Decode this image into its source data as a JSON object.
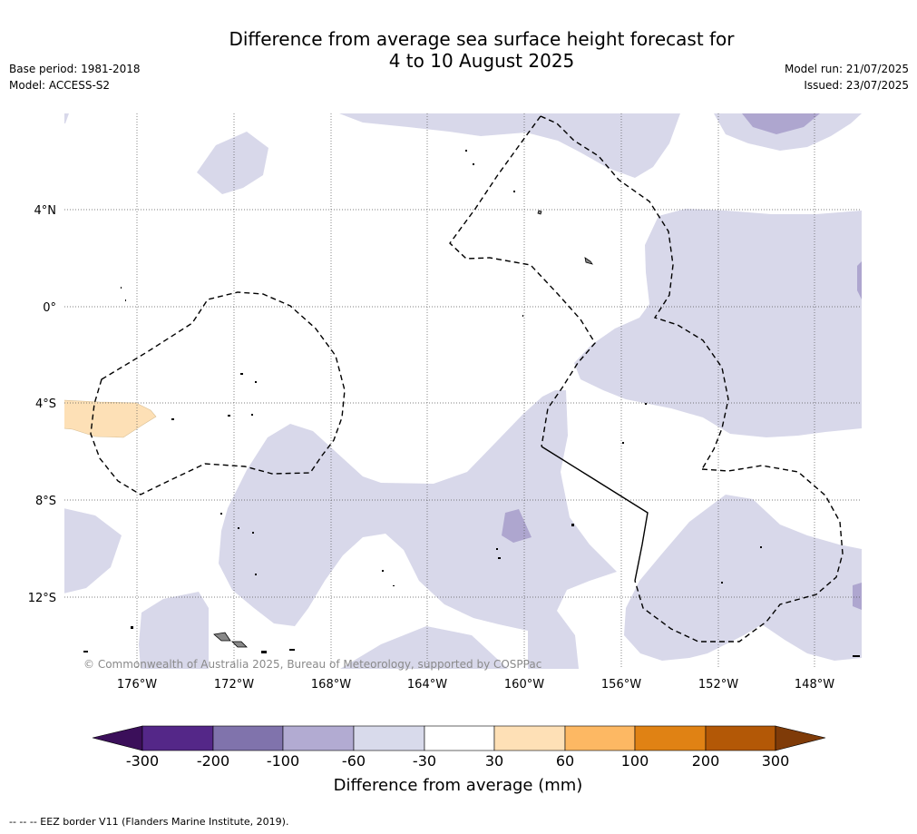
{
  "header": {
    "title_line1": "Difference from average sea surface height forecast for",
    "title_line2": "4 to 10 August 2025",
    "base_period": "Base period: 1981-2018",
    "model": "Model: ACCESS-S2",
    "model_run": "Model run: 21/07/2025",
    "issued": "Issued: 23/07/2025"
  },
  "map": {
    "lat_labels": [
      "4°N",
      "0°",
      "4°S",
      "8°S",
      "12°S"
    ],
    "lon_labels": [
      "176°W",
      "172°W",
      "168°W",
      "164°W",
      "160°W",
      "156°W",
      "152°W",
      "148°W"
    ],
    "copyright": "© Commonwealth of Australia 2025, Bureau of Meteorology, supported by COSPPac",
    "colors": {
      "very_light_purple": "#d8d8ea",
      "light_purple": "#aea6cf",
      "light_orange": "#fde0b6",
      "land": "#888888"
    }
  },
  "colorbar": {
    "ticks": [
      "-300",
      "-200",
      "-100",
      "-60",
      "-30",
      "30",
      "60",
      "100",
      "200",
      "300"
    ],
    "colors": [
      "#3b0f5a",
      "#542788",
      "#8073ac",
      "#b2abd2",
      "#d8daeb",
      "#ffffff",
      "#fee0b6",
      "#fdb863",
      "#e08214",
      "#b35806",
      "#7f3b08"
    ],
    "label": "Difference from average (mm)"
  },
  "footnote": "--  --  -- EEZ border V11 (Flanders Marine Institute, 2019)."
}
